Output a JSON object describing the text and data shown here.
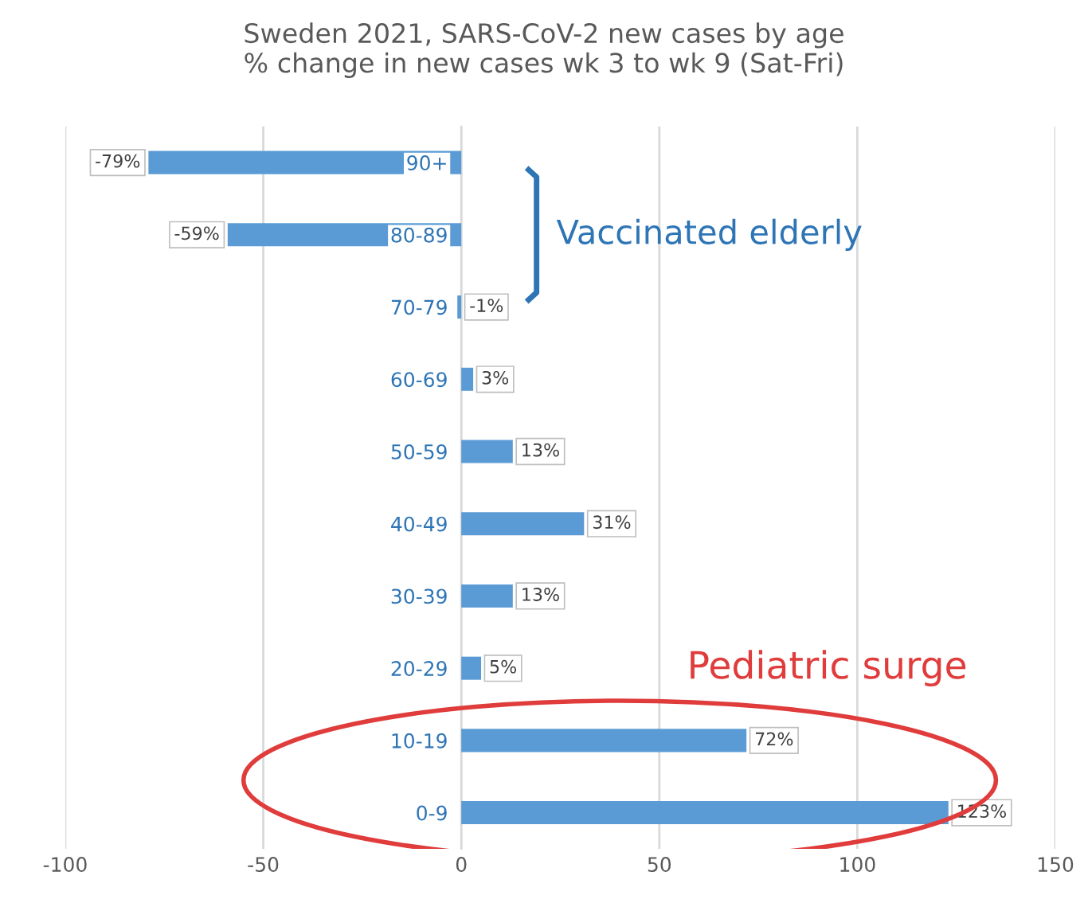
{
  "chart_data": {
    "type": "bar",
    "orientation": "horizontal",
    "title": "Sweden 2021, SARS-CoV-2 new cases by age\n% change in new cases wk 3 to wk 9 (Sat-Fri)",
    "categories": [
      "90+",
      "80-89",
      "70-79",
      "60-69",
      "50-59",
      "40-49",
      "30-39",
      "20-29",
      "10-19",
      "0-9"
    ],
    "values": [
      -79,
      -59,
      -1,
      3,
      13,
      31,
      13,
      5,
      72,
      123
    ],
    "value_labels": [
      "-79%",
      "-59%",
      "-1%",
      "3%",
      "13%",
      "31%",
      "13%",
      "5%",
      "72%",
      "123%"
    ],
    "color": "#5b9bd5",
    "xlim": [
      -100,
      150
    ],
    "xticks": [
      -100,
      -50,
      0,
      50,
      100,
      150
    ],
    "grid": "x",
    "annotations": [
      "Vaccinated elderly",
      "Pediatric surge"
    ]
  }
}
